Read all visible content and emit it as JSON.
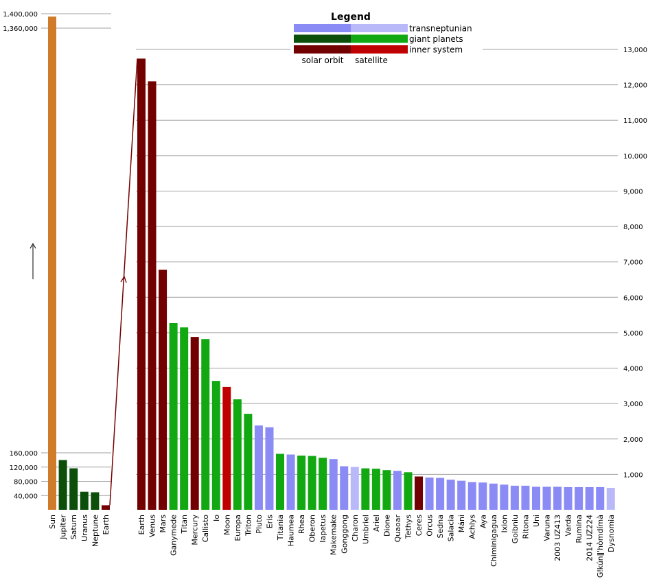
{
  "chart_data": [
    {
      "type": "bar",
      "panel": "left",
      "categories": [
        "Sun",
        "Jupiter",
        "Saturn",
        "Uranus",
        "Neptune",
        "Earth"
      ],
      "values": [
        1392000,
        139800,
        116500,
        50700,
        49200,
        12740
      ],
      "groups": [
        "star",
        "giant-orbit",
        "giant-orbit",
        "giant-orbit",
        "giant-orbit",
        "inner-orbit"
      ],
      "yticks_upper": [
        "1,400,000",
        "1,360,000"
      ],
      "yticks_lower": [
        "160,000",
        "120,000",
        "80,000",
        "40,000"
      ],
      "scale_break": "160,000 to 1,360,000"
    },
    {
      "type": "bar",
      "panel": "right",
      "categories": [
        "Earth",
        "Venus",
        "Mars",
        "Ganymede",
        "Titan",
        "Mercury",
        "Callisto",
        "Io",
        "Moon",
        "Europa",
        "Triton",
        "Pluto",
        "Eris",
        "Titania",
        "Haumea",
        "Rhea",
        "Oberon",
        "Iapetus",
        "Makemake",
        "Gonggong",
        "Charon",
        "Umbriel",
        "Ariel",
        "Dione",
        "Quaoar",
        "Tethys",
        "Ceres",
        "Orcus",
        "Sedna",
        "Salacia",
        "Máni",
        "Achlys",
        "Aya",
        "Chiminigagua",
        "Ixion",
        "Goibniu",
        "Ritona",
        "Uni",
        "Varuna",
        "2003 UZ413",
        "Varda",
        "Rumina",
        "2014 UZ224",
        "Gǃkúnǁ'hòmdímà",
        "Dysnomia"
      ],
      "values": [
        12740,
        12100,
        6780,
        5270,
        5150,
        4880,
        4820,
        3640,
        3470,
        3120,
        2710,
        2380,
        2330,
        1580,
        1560,
        1530,
        1520,
        1470,
        1430,
        1230,
        1210,
        1170,
        1160,
        1120,
        1100,
        1060,
        940,
        910,
        900,
        850,
        820,
        780,
        770,
        740,
        710,
        680,
        680,
        650,
        650,
        650,
        640,
        640,
        640,
        640,
        620
      ],
      "groups": [
        "inner-orbit",
        "inner-orbit",
        "inner-orbit",
        "giant-sat",
        "giant-sat",
        "inner-orbit",
        "giant-sat",
        "giant-sat",
        "inner-sat",
        "giant-sat",
        "giant-sat",
        "tn-orbit",
        "tn-orbit",
        "giant-sat",
        "tn-orbit",
        "giant-sat",
        "giant-sat",
        "giant-sat",
        "tn-orbit",
        "tn-orbit",
        "tn-sat",
        "giant-sat",
        "giant-sat",
        "giant-sat",
        "tn-orbit",
        "giant-sat",
        "inner-orbit",
        "tn-orbit",
        "tn-orbit",
        "tn-orbit",
        "tn-orbit",
        "tn-orbit",
        "tn-orbit",
        "tn-orbit",
        "tn-orbit",
        "tn-orbit",
        "tn-orbit",
        "tn-orbit",
        "tn-orbit",
        "tn-orbit",
        "tn-orbit",
        "tn-orbit",
        "tn-orbit",
        "tn-orbit",
        "tn-sat"
      ],
      "yticks": [
        "13,000",
        "12,000",
        "11,000",
        "10,000",
        "9,000",
        "8,000",
        "7,000",
        "6,000",
        "5,000",
        "4,000",
        "3,000",
        "2,000",
        "1,000"
      ],
      "ylim": [
        0,
        13000
      ]
    }
  ],
  "legend": {
    "title": "Legend",
    "rows": [
      "transneptunian",
      "giant planets",
      "inner system"
    ],
    "columns": [
      "solar orbit",
      "satellite"
    ]
  },
  "colors": {
    "star": "#d07b2a",
    "giant-orbit": "#0b4f0b",
    "giant-sat": "#12a812",
    "inner-orbit": "#730000",
    "inner-sat": "#c00000",
    "tn-orbit": "#8b8bf6",
    "tn-sat": "#b9b9f9",
    "grid": "#a0a0a0",
    "connector": "#730000"
  }
}
